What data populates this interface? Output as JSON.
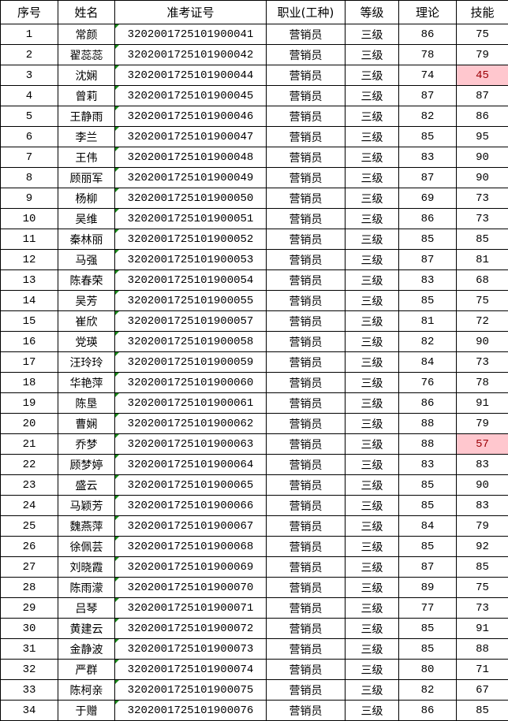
{
  "headers": [
    "序号",
    "姓名",
    "准考证号",
    "职业(工种)",
    "等级",
    "理论",
    "技能"
  ],
  "colors": {
    "fail_fill": "#ffc7ce",
    "fail_text": "#9c0006",
    "text_indicator": "#1a8a1a"
  },
  "rows": [
    {
      "seq": "1",
      "name": "常颜",
      "id": "3202001725101900041",
      "job": "营销员",
      "level": "三级",
      "theory": "86",
      "skill": "75",
      "fail": false
    },
    {
      "seq": "2",
      "name": "翟蕊蕊",
      "id": "3202001725101900042",
      "job": "营销员",
      "level": "三级",
      "theory": "78",
      "skill": "79",
      "fail": false
    },
    {
      "seq": "3",
      "name": "沈娴",
      "id": "3202001725101900044",
      "job": "营销员",
      "level": "三级",
      "theory": "74",
      "skill": "45",
      "fail": true
    },
    {
      "seq": "4",
      "name": "曾莉",
      "id": "3202001725101900045",
      "job": "营销员",
      "level": "三级",
      "theory": "87",
      "skill": "87",
      "fail": false
    },
    {
      "seq": "5",
      "name": "王静雨",
      "id": "3202001725101900046",
      "job": "营销员",
      "level": "三级",
      "theory": "82",
      "skill": "86",
      "fail": false
    },
    {
      "seq": "6",
      "name": "李兰",
      "id": "3202001725101900047",
      "job": "营销员",
      "level": "三级",
      "theory": "85",
      "skill": "95",
      "fail": false
    },
    {
      "seq": "7",
      "name": "王伟",
      "id": "3202001725101900048",
      "job": "营销员",
      "level": "三级",
      "theory": "83",
      "skill": "90",
      "fail": false
    },
    {
      "seq": "8",
      "name": "顾丽军",
      "id": "3202001725101900049",
      "job": "营销员",
      "level": "三级",
      "theory": "87",
      "skill": "90",
      "fail": false
    },
    {
      "seq": "9",
      "name": "杨柳",
      "id": "3202001725101900050",
      "job": "营销员",
      "level": "三级",
      "theory": "69",
      "skill": "73",
      "fail": false
    },
    {
      "seq": "10",
      "name": "吴维",
      "id": "3202001725101900051",
      "job": "营销员",
      "level": "三级",
      "theory": "86",
      "skill": "73",
      "fail": false
    },
    {
      "seq": "11",
      "name": "秦林丽",
      "id": "3202001725101900052",
      "job": "营销员",
      "level": "三级",
      "theory": "85",
      "skill": "85",
      "fail": false
    },
    {
      "seq": "12",
      "name": "马强",
      "id": "3202001725101900053",
      "job": "营销员",
      "level": "三级",
      "theory": "87",
      "skill": "81",
      "fail": false
    },
    {
      "seq": "13",
      "name": "陈春荣",
      "id": "3202001725101900054",
      "job": "营销员",
      "level": "三级",
      "theory": "83",
      "skill": "68",
      "fail": false
    },
    {
      "seq": "14",
      "name": "吴芳",
      "id": "3202001725101900055",
      "job": "营销员",
      "level": "三级",
      "theory": "85",
      "skill": "75",
      "fail": false
    },
    {
      "seq": "15",
      "name": "崔欣",
      "id": "3202001725101900057",
      "job": "营销员",
      "level": "三级",
      "theory": "81",
      "skill": "72",
      "fail": false
    },
    {
      "seq": "16",
      "name": "党瑛",
      "id": "3202001725101900058",
      "job": "营销员",
      "level": "三级",
      "theory": "82",
      "skill": "90",
      "fail": false
    },
    {
      "seq": "17",
      "name": "汪玲玲",
      "id": "3202001725101900059",
      "job": "营销员",
      "level": "三级",
      "theory": "84",
      "skill": "73",
      "fail": false
    },
    {
      "seq": "18",
      "name": "华艳萍",
      "id": "3202001725101900060",
      "job": "营销员",
      "level": "三级",
      "theory": "76",
      "skill": "78",
      "fail": false
    },
    {
      "seq": "19",
      "name": "陈垦",
      "id": "3202001725101900061",
      "job": "营销员",
      "level": "三级",
      "theory": "86",
      "skill": "91",
      "fail": false
    },
    {
      "seq": "20",
      "name": "曹娴",
      "id": "3202001725101900062",
      "job": "营销员",
      "level": "三级",
      "theory": "88",
      "skill": "79",
      "fail": false
    },
    {
      "seq": "21",
      "name": "乔梦",
      "id": "3202001725101900063",
      "job": "营销员",
      "level": "三级",
      "theory": "88",
      "skill": "57",
      "fail": true
    },
    {
      "seq": "22",
      "name": "顾梦婷",
      "id": "3202001725101900064",
      "job": "营销员",
      "level": "三级",
      "theory": "83",
      "skill": "83",
      "fail": false
    },
    {
      "seq": "23",
      "name": "盛云",
      "id": "3202001725101900065",
      "job": "营销员",
      "level": "三级",
      "theory": "85",
      "skill": "90",
      "fail": false
    },
    {
      "seq": "24",
      "name": "马颖芳",
      "id": "3202001725101900066",
      "job": "营销员",
      "level": "三级",
      "theory": "85",
      "skill": "83",
      "fail": false
    },
    {
      "seq": "25",
      "name": "魏燕萍",
      "id": "3202001725101900067",
      "job": "营销员",
      "level": "三级",
      "theory": "84",
      "skill": "79",
      "fail": false
    },
    {
      "seq": "26",
      "name": "徐佩芸",
      "id": "3202001725101900068",
      "job": "营销员",
      "level": "三级",
      "theory": "85",
      "skill": "92",
      "fail": false
    },
    {
      "seq": "27",
      "name": "刘晓霞",
      "id": "3202001725101900069",
      "job": "营销员",
      "level": "三级",
      "theory": "87",
      "skill": "85",
      "fail": false
    },
    {
      "seq": "28",
      "name": "陈雨濛",
      "id": "3202001725101900070",
      "job": "营销员",
      "level": "三级",
      "theory": "89",
      "skill": "75",
      "fail": false
    },
    {
      "seq": "29",
      "name": "吕琴",
      "id": "3202001725101900071",
      "job": "营销员",
      "level": "三级",
      "theory": "77",
      "skill": "73",
      "fail": false
    },
    {
      "seq": "30",
      "name": "黄建云",
      "id": "3202001725101900072",
      "job": "营销员",
      "level": "三级",
      "theory": "85",
      "skill": "91",
      "fail": false
    },
    {
      "seq": "31",
      "name": "金静波",
      "id": "3202001725101900073",
      "job": "营销员",
      "level": "三级",
      "theory": "85",
      "skill": "88",
      "fail": false
    },
    {
      "seq": "32",
      "name": "严群",
      "id": "3202001725101900074",
      "job": "营销员",
      "level": "三级",
      "theory": "80",
      "skill": "71",
      "fail": false
    },
    {
      "seq": "33",
      "name": "陈柯亲",
      "id": "3202001725101900075",
      "job": "营销员",
      "level": "三级",
      "theory": "82",
      "skill": "67",
      "fail": false
    },
    {
      "seq": "34",
      "name": "于赠",
      "id": "3202001725101900076",
      "job": "营销员",
      "level": "三级",
      "theory": "86",
      "skill": "85",
      "fail": false
    }
  ]
}
